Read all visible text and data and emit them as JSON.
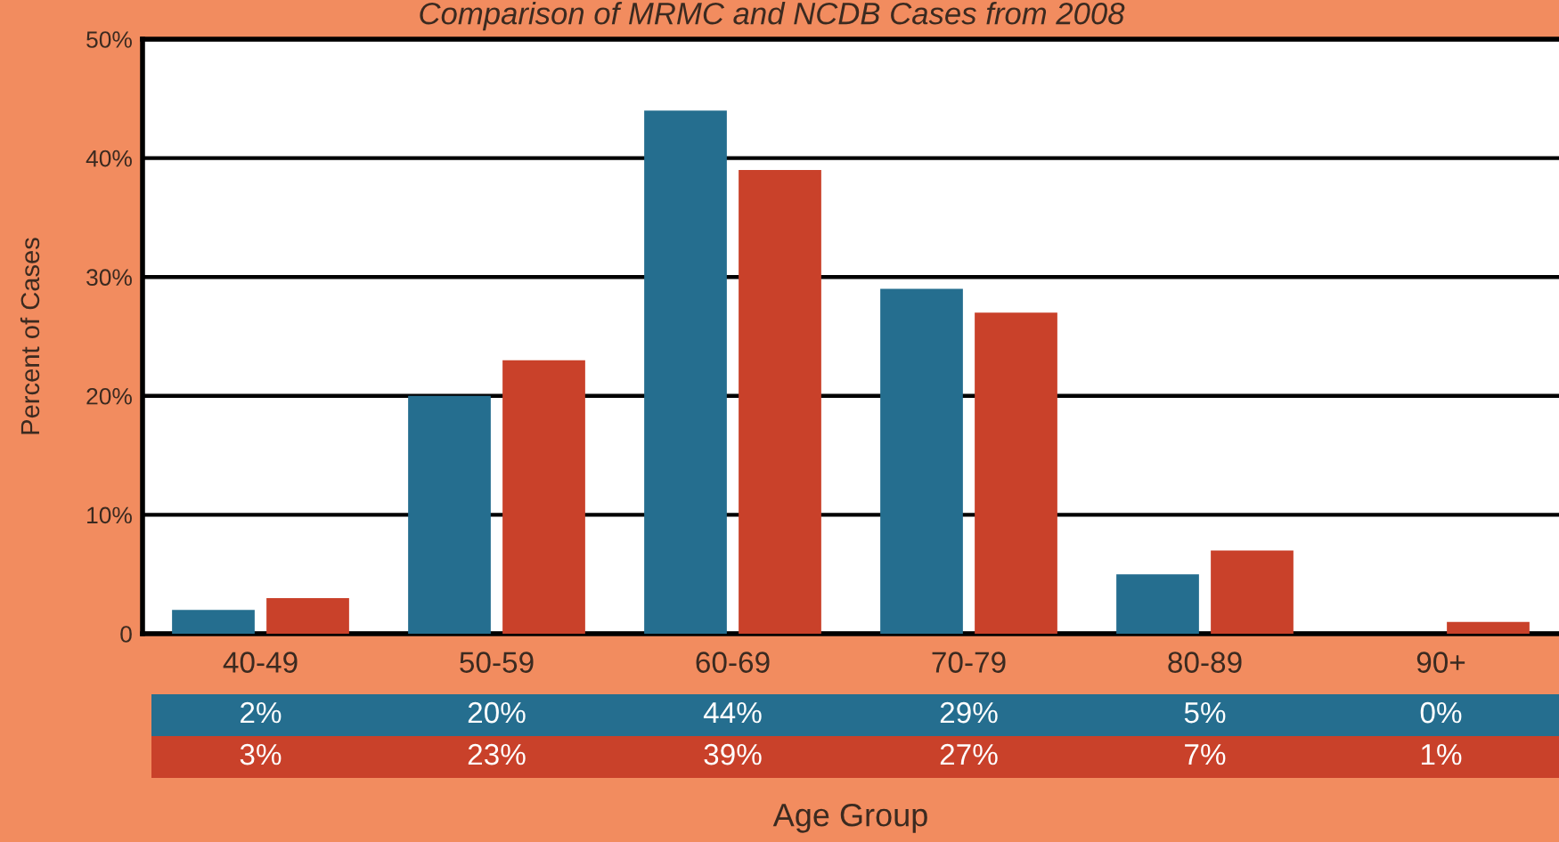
{
  "chart_data": {
    "type": "bar",
    "title": "Comparison of MRMC and NCDB Cases from 2008",
    "xlabel": "Age Group",
    "ylabel": "Percent of Cases",
    "categories": [
      "40-49",
      "50-59",
      "60-69",
      "70-79",
      "80-89",
      "90+"
    ],
    "series": [
      {
        "color": "#256e8f",
        "values": [
          2,
          20,
          44,
          29,
          5,
          0
        ],
        "value_labels": [
          "2%",
          "20%",
          "44%",
          "29%",
          "5%",
          "0%"
        ]
      },
      {
        "color": "#c9412a",
        "values": [
          3,
          23,
          39,
          27,
          7,
          1
        ],
        "value_labels": [
          "3%",
          "23%",
          "39%",
          "27%",
          "7%",
          "1%"
        ]
      }
    ],
    "ylim": [
      0,
      50
    ],
    "yticks": [
      {
        "value": 0,
        "label": "0"
      },
      {
        "value": 10,
        "label": "10%"
      },
      {
        "value": 20,
        "label": "20%"
      },
      {
        "value": 30,
        "label": "30%"
      },
      {
        "value": 40,
        "label": "40%"
      },
      {
        "value": 50,
        "label": "50%"
      }
    ],
    "grid": "y"
  }
}
